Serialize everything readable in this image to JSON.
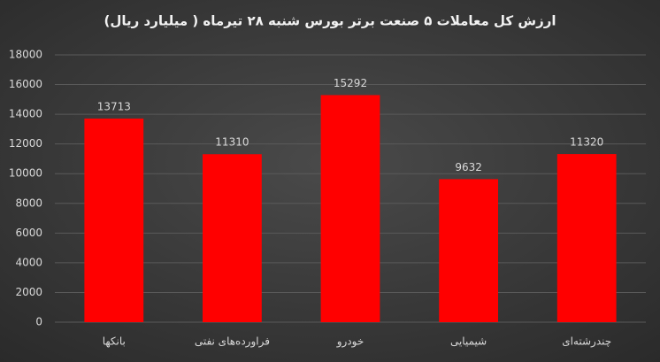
{
  "chart_data": {
    "type": "bar",
    "title": "ارزش کل معاملات ۵ صنعت برتر بورس شنبه ۲۸ تیرماه ( میلیارد ریال)",
    "categories": [
      "بانکها",
      "فراورده‌های نفتی",
      "خودرو",
      "شیمیایی",
      "چندرشته‌ای"
    ],
    "values": [
      13713,
      11310,
      15292,
      9632,
      11320
    ],
    "color": "#ff0000",
    "ylim": [
      0,
      18000
    ],
    "yticks": [
      0,
      2000,
      4000,
      6000,
      8000,
      10000,
      12000,
      14000,
      16000,
      18000
    ],
    "grid": true
  }
}
